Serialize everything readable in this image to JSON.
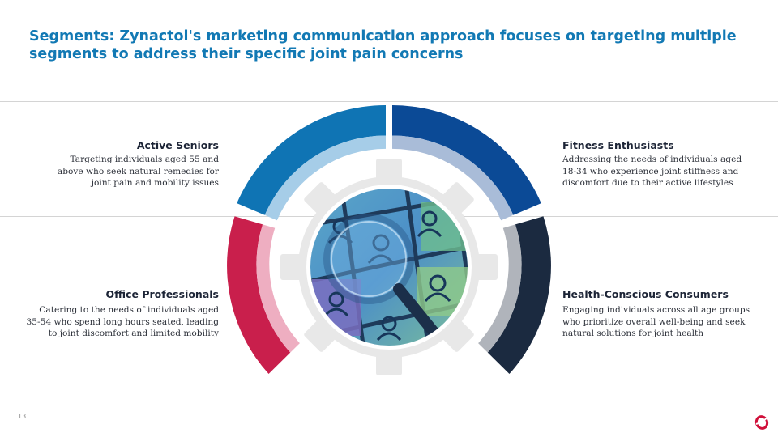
{
  "slide": {
    "title": "Segments: Zynactol's marketing communication approach focuses on targeting multiple segments to address their specific joint pain concerns",
    "page_number": "13"
  },
  "segments": [
    {
      "id": "active-seniors",
      "heading": "Active Seniors",
      "description": [
        "Targeting individuals aged 55 and",
        "above who seek natural remedies for",
        "joint pain and mobility issues"
      ],
      "color": "#0f74b4",
      "inner_color": "#a6cde8"
    },
    {
      "id": "fitness-enthusiasts",
      "heading": "Fitness Enthusiasts",
      "description": [
        "Addressing the needs of individuals aged",
        "18-34 who experience joint stiffness and",
        "discomfort due to their active lifestyles"
      ],
      "color": "#0b4a96",
      "inner_color": "#a9bcd8"
    },
    {
      "id": "office-professionals",
      "heading": "Office Professionals",
      "description": [
        "Catering to the needs of individuals aged",
        "35-54 who spend long hours seated, leading",
        "to joint discomfort and limited mobility"
      ],
      "color": "#c91f4c",
      "inner_color": "#eeaec1"
    },
    {
      "id": "health-conscious-consumers",
      "heading": "Health-Conscious Consumers",
      "description": [
        "Engaging individuals across all age groups",
        "who prioritize overall well-being and seek",
        "natural solutions for joint health"
      ],
      "color": "#1b2a40",
      "inner_color": "#b0b4bb"
    }
  ],
  "graphic": {
    "center_icon": "magnifier-people-icon",
    "gear_icon": "gear-icon",
    "logo_icon": "brand-logo-icon",
    "gear_color": "#e8e8e8",
    "logo_color": "#d0103a"
  }
}
